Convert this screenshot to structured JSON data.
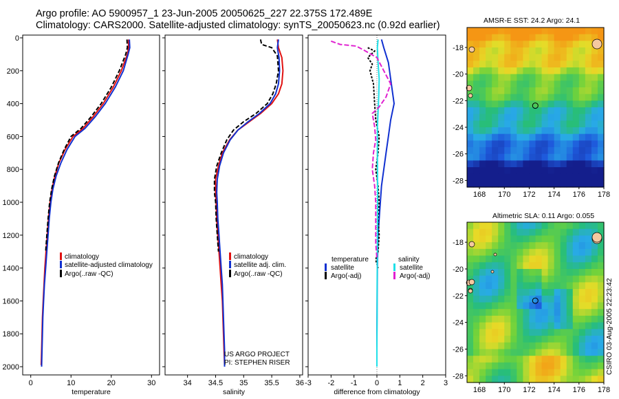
{
  "header": {
    "line1": "Argo profile: AO 5900957_1 23-Jun-2005 20050625_227 22.375S 172.489E",
    "line2": "Climatology: CARS2000. Satellite-adjusted climatology: synTS_20050623.nc (0.92d earlier)"
  },
  "colors": {
    "climatology": "#e01010",
    "satellite": "#1030d0",
    "argo": "#000000",
    "sal_satellite": "#20e0e8",
    "sal_argo": "#e020d0"
  },
  "chart_data": [
    {
      "type": "line",
      "panel": "temperature",
      "xlabel": "temperature",
      "xlim": [
        -2,
        32
      ],
      "ylim": [
        2050,
        0
      ],
      "xticks": [
        0,
        10,
        20,
        30
      ],
      "yticks": [
        0,
        200,
        400,
        600,
        800,
        1000,
        1200,
        1400,
        1600,
        1800,
        2000
      ],
      "legend": [
        "climatology",
        "satellite-adjusted climatology",
        "Argo(..raw -QC)"
      ],
      "series": [
        {
          "name": "climatology",
          "color": "climatology",
          "dash": "",
          "points": [
            [
              24.3,
              10
            ],
            [
              24.3,
              60
            ],
            [
              24.0,
              100
            ],
            [
              22.5,
              200
            ],
            [
              20.5,
              300
            ],
            [
              18.0,
              400
            ],
            [
              15.5,
              480
            ],
            [
              13.0,
              550
            ],
            [
              10.5,
              600
            ],
            [
              8.5,
              680
            ],
            [
              7.0,
              760
            ],
            [
              6.0,
              840
            ],
            [
              5.3,
              920
            ],
            [
              4.8,
              1000
            ],
            [
              4.4,
              1100
            ],
            [
              4.1,
              1200
            ],
            [
              3.8,
              1300
            ],
            [
              3.5,
              1400
            ],
            [
              3.3,
              1500
            ],
            [
              3.1,
              1600
            ],
            [
              2.9,
              1700
            ],
            [
              2.8,
              1800
            ],
            [
              2.7,
              1900
            ],
            [
              2.6,
              1990
            ]
          ]
        },
        {
          "name": "satellite-adjusted climatology",
          "color": "satellite",
          "dash": "",
          "points": [
            [
              24.5,
              10
            ],
            [
              24.6,
              60
            ],
            [
              24.2,
              100
            ],
            [
              23.0,
              200
            ],
            [
              21.0,
              300
            ],
            [
              18.5,
              400
            ],
            [
              16.0,
              480
            ],
            [
              13.5,
              550
            ],
            [
              11.0,
              600
            ],
            [
              9.0,
              680
            ],
            [
              7.5,
              760
            ],
            [
              6.3,
              840
            ],
            [
              5.5,
              920
            ],
            [
              5.0,
              1000
            ],
            [
              4.6,
              1100
            ],
            [
              4.3,
              1200
            ],
            [
              4.0,
              1300
            ],
            [
              3.7,
              1400
            ],
            [
              3.4,
              1500
            ],
            [
              3.2,
              1600
            ],
            [
              3.0,
              1700
            ],
            [
              2.9,
              1800
            ],
            [
              2.8,
              1900
            ],
            [
              2.7,
              2000
            ]
          ]
        },
        {
          "name": "Argo(..raw -QC)",
          "color": "argo",
          "dash": "6,3",
          "points": [
            [
              23.9,
              10
            ],
            [
              24.0,
              60
            ],
            [
              23.6,
              100
            ],
            [
              22.0,
              200
            ],
            [
              20.0,
              300
            ],
            [
              17.5,
              400
            ],
            [
              15.0,
              480
            ],
            [
              12.5,
              550
            ],
            [
              10.0,
              600
            ],
            [
              8.3,
              680
            ],
            [
              6.9,
              760
            ],
            [
              5.9,
              840
            ],
            [
              5.2,
              920
            ],
            [
              4.7,
              1000
            ],
            [
              4.3,
              1100
            ],
            [
              4.0,
              1200
            ],
            [
              3.7,
              1300
            ]
          ]
        }
      ]
    },
    {
      "type": "line",
      "panel": "salinity",
      "xlabel": "salinity",
      "xlim": [
        33.6,
        36.05
      ],
      "ylim": [
        2050,
        0
      ],
      "xticks": [
        34,
        34.5,
        35,
        35.5,
        36
      ],
      "yticks": [
        0,
        200,
        400,
        600,
        800,
        1000,
        1200,
        1400,
        1600,
        1800,
        2000
      ],
      "legend": [
        "climatology",
        "satellite adj. clim.",
        "Argo(..raw -QC)"
      ],
      "project_lines": [
        "US ARGO PROJECT",
        "PI: STEPHEN RISER"
      ],
      "series": [
        {
          "name": "climatology",
          "color": "climatology",
          "dash": "",
          "points": [
            [
              35.6,
              10
            ],
            [
              35.62,
              60
            ],
            [
              35.68,
              120
            ],
            [
              35.7,
              200
            ],
            [
              35.68,
              280
            ],
            [
              35.62,
              340
            ],
            [
              35.5,
              400
            ],
            [
              35.3,
              460
            ],
            [
              35.1,
              510
            ],
            [
              34.9,
              560
            ],
            [
              34.75,
              620
            ],
            [
              34.62,
              700
            ],
            [
              34.55,
              780
            ],
            [
              34.5,
              860
            ],
            [
              34.5,
              940
            ],
            [
              34.51,
              1000
            ],
            [
              34.52,
              1100
            ],
            [
              34.54,
              1200
            ],
            [
              34.56,
              1300
            ],
            [
              34.58,
              1400
            ],
            [
              34.6,
              1500
            ],
            [
              34.62,
              1600
            ],
            [
              34.63,
              1700
            ],
            [
              34.64,
              1800
            ],
            [
              34.65,
              1900
            ],
            [
              34.66,
              1990
            ]
          ]
        },
        {
          "name": "satellite adj. clim.",
          "color": "satellite",
          "dash": "",
          "points": [
            [
              35.62,
              10
            ],
            [
              35.6,
              60
            ],
            [
              35.63,
              120
            ],
            [
              35.64,
              200
            ],
            [
              35.62,
              280
            ],
            [
              35.57,
              340
            ],
            [
              35.47,
              400
            ],
            [
              35.28,
              460
            ],
            [
              35.08,
              510
            ],
            [
              34.9,
              560
            ],
            [
              34.76,
              620
            ],
            [
              34.64,
              700
            ],
            [
              34.57,
              780
            ],
            [
              34.53,
              860
            ],
            [
              34.52,
              940
            ],
            [
              34.53,
              1000
            ],
            [
              34.54,
              1100
            ],
            [
              34.56,
              1200
            ],
            [
              34.58,
              1300
            ],
            [
              34.6,
              1400
            ],
            [
              34.62,
              1500
            ],
            [
              34.63,
              1600
            ],
            [
              34.64,
              1700
            ],
            [
              34.65,
              1800
            ],
            [
              34.66,
              1900
            ],
            [
              34.66,
              2000
            ]
          ]
        },
        {
          "name": "Argo(..raw -QC)",
          "color": "argo",
          "dash": "6,3",
          "points": [
            [
              35.3,
              10
            ],
            [
              35.32,
              40
            ],
            [
              35.5,
              60
            ],
            [
              35.6,
              110
            ],
            [
              35.62,
              200
            ],
            [
              35.58,
              280
            ],
            [
              35.52,
              340
            ],
            [
              35.42,
              400
            ],
            [
              35.22,
              460
            ],
            [
              35.0,
              510
            ],
            [
              34.82,
              560
            ],
            [
              34.7,
              620
            ],
            [
              34.6,
              700
            ],
            [
              34.52,
              780
            ],
            [
              34.48,
              860
            ],
            [
              34.48,
              940
            ],
            [
              34.5,
              1000
            ],
            [
              34.51,
              1100
            ],
            [
              34.53,
              1200
            ],
            [
              34.55,
              1300
            ]
          ]
        }
      ]
    },
    {
      "type": "line",
      "panel": "difference",
      "xlabel": "difference from climatology",
      "xlim": [
        -3,
        3
      ],
      "ylim": [
        2050,
        0
      ],
      "xticks": [
        -3,
        -2,
        -1,
        0,
        1,
        2,
        3
      ],
      "yticks": [
        0,
        200,
        400,
        600,
        800,
        1000,
        1200,
        1400,
        1600,
        1800,
        2000
      ],
      "legend_left_title": "temperature",
      "legend_right_title": "salinity",
      "legend_left": [
        "satellite",
        "Argo(-adj)"
      ],
      "legend_right": [
        "satellite",
        "Argo(-adj)"
      ],
      "series": [
        {
          "name": "temperature satellite",
          "color": "satellite",
          "dash": "",
          "points": [
            [
              0.2,
              10
            ],
            [
              0.3,
              60
            ],
            [
              0.5,
              150
            ],
            [
              0.6,
              250
            ],
            [
              0.75,
              400
            ],
            [
              0.6,
              500
            ],
            [
              0.5,
              600
            ],
            [
              0.4,
              700
            ],
            [
              0.3,
              800
            ],
            [
              0.2,
              900
            ],
            [
              0.15,
              1000
            ],
            [
              0.1,
              1100
            ],
            [
              0.05,
              1200
            ],
            [
              0.02,
              1400
            ],
            [
              0.01,
              1600
            ],
            [
              0,
              1800
            ],
            [
              0,
              2000
            ]
          ]
        },
        {
          "name": "temperature Argo(-adj)",
          "color": "argo",
          "dash": "3,2",
          "points": [
            [
              -0.4,
              60
            ],
            [
              -0.1,
              80
            ],
            [
              -0.4,
              120
            ],
            [
              -0.2,
              160
            ],
            [
              -0.3,
              200
            ],
            [
              -0.15,
              280
            ],
            [
              -0.1,
              400
            ],
            [
              -0.05,
              500
            ],
            [
              0.1,
              600
            ],
            [
              0.05,
              700
            ],
            [
              -0.05,
              800
            ],
            [
              0.05,
              900
            ],
            [
              0.1,
              1000
            ],
            [
              0.05,
              1100
            ],
            [
              0.1,
              1200
            ],
            [
              0.05,
              1300
            ],
            [
              -0.05,
              1350
            ],
            [
              0.05,
              1400
            ]
          ]
        },
        {
          "name": "salinity satellite",
          "color": "sal_satellite",
          "dash": "",
          "points": [
            [
              0.05,
              10
            ],
            [
              0.02,
              60
            ],
            [
              0.05,
              150
            ],
            [
              0.1,
              250
            ],
            [
              0.08,
              350
            ],
            [
              0.05,
              450
            ],
            [
              0.02,
              550
            ],
            [
              0.02,
              700
            ],
            [
              0.03,
              900
            ],
            [
              0.03,
              1100
            ],
            [
              0.02,
              1300
            ],
            [
              0.01,
              1500
            ],
            [
              0.01,
              1700
            ],
            [
              0,
              1900
            ],
            [
              0,
              2000
            ]
          ]
        },
        {
          "name": "salinity Argo(-adj)",
          "color": "sal_argo",
          "dash": "7,3",
          "points": [
            [
              -2.0,
              20
            ],
            [
              -1.6,
              40
            ],
            [
              -0.9,
              50
            ],
            [
              -0.5,
              80
            ],
            [
              0.0,
              120
            ],
            [
              0.3,
              200
            ],
            [
              0.6,
              280
            ],
            [
              0.4,
              360
            ],
            [
              0.1,
              420
            ],
            [
              -0.2,
              460
            ],
            [
              -0.1,
              540
            ],
            [
              -0.05,
              620
            ],
            [
              -0.15,
              700
            ],
            [
              -0.2,
              800
            ],
            [
              -0.1,
              900
            ],
            [
              -0.05,
              1000
            ],
            [
              -0.05,
              1100
            ],
            [
              -0.05,
              1250
            ],
            [
              0,
              1340
            ]
          ]
        }
      ]
    }
  ],
  "maps": [
    {
      "id": "sst",
      "title": "AMSR-E SST: 24.2 Argo: 24.1",
      "xticks": [
        "168",
        "170",
        "172",
        "174",
        "176",
        "178"
      ],
      "yticks": [
        "-18",
        "-20",
        "-22",
        "-24",
        "-26",
        "-28"
      ],
      "lon_range": [
        167,
        178
      ],
      "lat_range": [
        -28.5,
        -16.5
      ]
    },
    {
      "id": "sla",
      "title": "Altimetric SLA: 0.11 Argo: 0.055",
      "xticks": [
        "168",
        "170",
        "172",
        "174",
        "176",
        "178"
      ],
      "yticks": [
        "-18",
        "-20",
        "-22",
        "-24",
        "-26",
        "-28"
      ],
      "lon_range": [
        167,
        178
      ],
      "lat_range": [
        -28.5,
        -16.5
      ]
    }
  ],
  "footer": {
    "stamp": "CSIRO 03-Aug-2005 22:23:42"
  }
}
